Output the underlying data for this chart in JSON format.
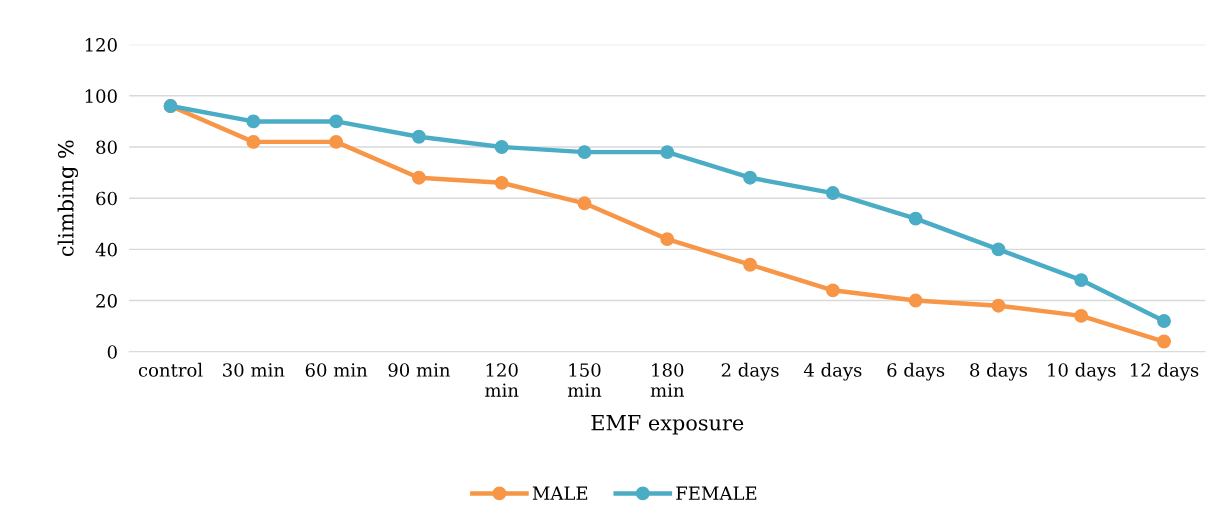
{
  "chart_data": {
    "type": "line",
    "xlabel": "EMF exposure",
    "ylabel": "climbing %",
    "categories": [
      "control",
      "30 min",
      "60 min",
      "90 min",
      "120\nmin",
      "150\nmin",
      "180\nmin",
      "2 days",
      "4 days",
      "6 days",
      "8 days",
      "10 days",
      "12 days"
    ],
    "series": [
      {
        "name": "MALE",
        "color": "#f79646",
        "values": [
          96,
          82,
          82,
          68,
          66,
          58,
          44,
          34,
          24,
          20,
          18,
          14,
          4
        ]
      },
      {
        "name": "FEMALE",
        "color": "#4bacc6",
        "values": [
          96,
          90,
          90,
          84,
          80,
          78,
          78,
          68,
          62,
          52,
          40,
          28,
          12
        ]
      }
    ],
    "ylim": [
      0,
      120
    ],
    "yticks": [
      0,
      20,
      40,
      60,
      80,
      100,
      120
    ],
    "grid": "y",
    "legend": "bottom",
    "marker": "circle",
    "line_style": "solid"
  }
}
